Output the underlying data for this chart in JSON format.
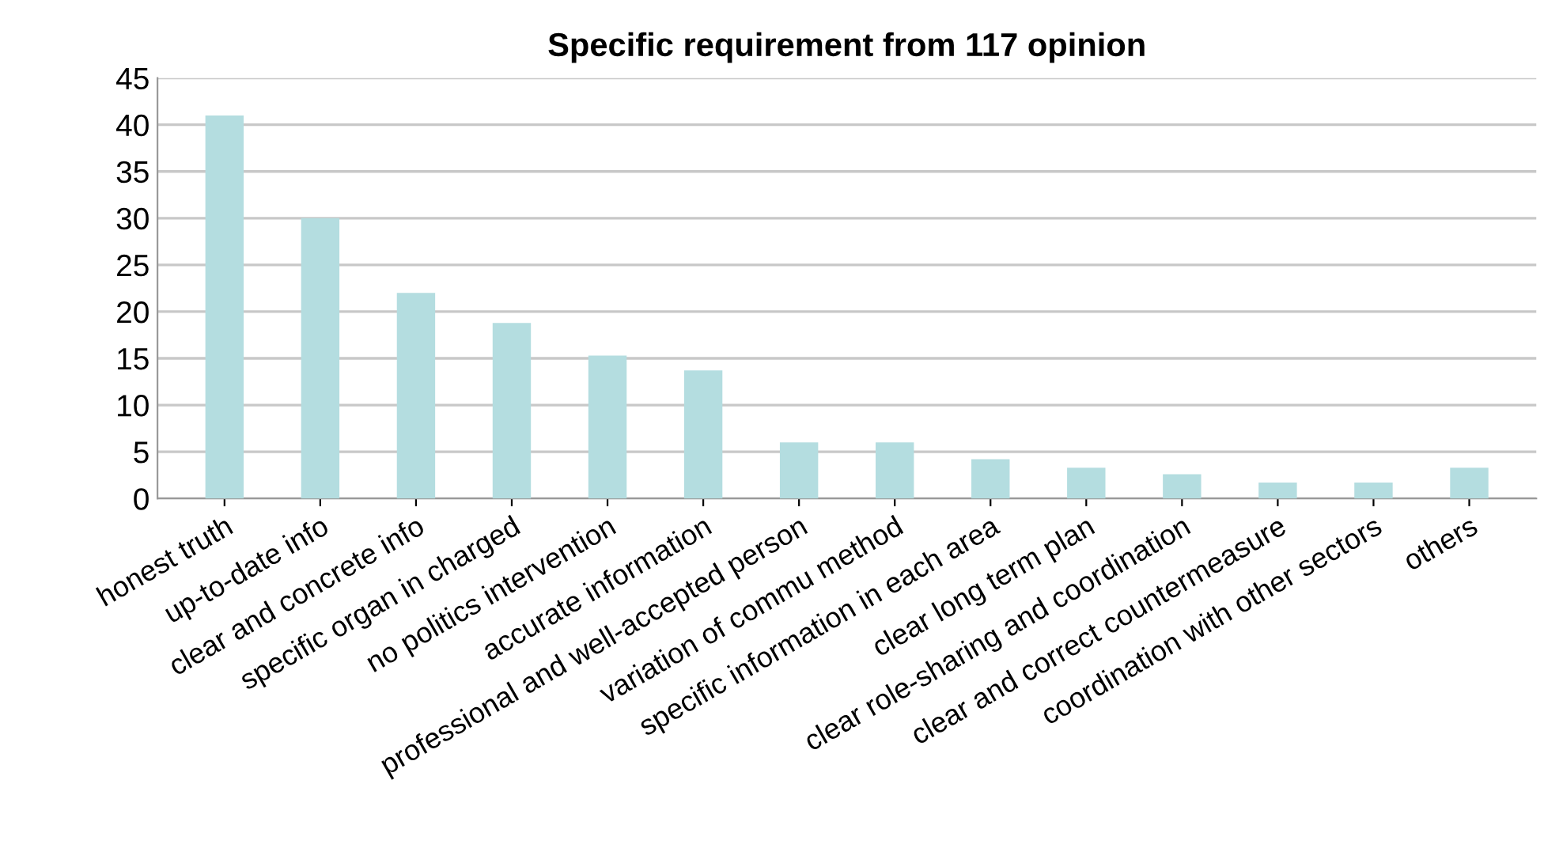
{
  "chart_data": {
    "type": "bar",
    "title": "Specific requirement from 117 opinion",
    "categories": [
      "honest truth",
      "up-to-date info",
      "clear and concrete info",
      "specific organ in charged",
      "no politics intervention",
      "accurate information",
      "professional and well-accepted person",
      "variation of commu method",
      "specific information in each area",
      "clear long term plan",
      "clear role-sharing and coordination",
      "clear and correct countermeasure",
      "coordination with other sectors",
      "others"
    ],
    "values": [
      41.0,
      30.0,
      22.0,
      18.8,
      15.3,
      13.7,
      6.0,
      6.0,
      4.2,
      3.3,
      2.6,
      1.7,
      1.7,
      3.3
    ],
    "color": "#b4dde0",
    "ylim": [
      0,
      45
    ],
    "yticks": [
      0,
      5,
      10,
      15,
      20,
      25,
      30,
      35,
      40,
      45
    ],
    "grid": "y",
    "legend": false
  }
}
